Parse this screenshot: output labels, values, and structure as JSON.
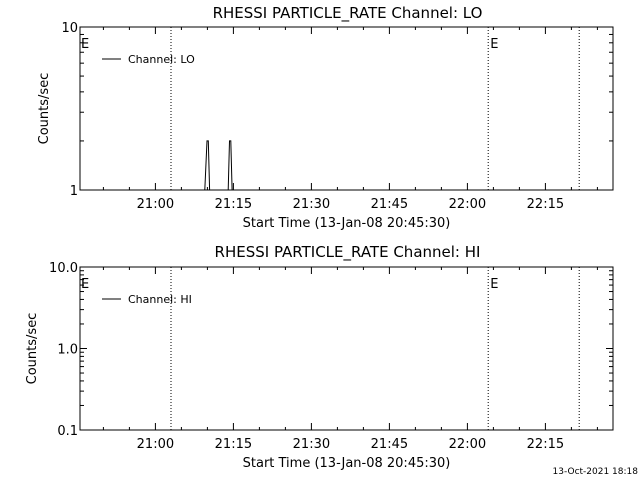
{
  "chart_data": [
    {
      "type": "line",
      "title": "RHESSI PARTICLE_RATE Channel: LO",
      "xlabel": "Start Time (13-Jan-08 20:45:30)",
      "ylabel": "Counts/sec",
      "y_scale": "log",
      "ylim": [
        1,
        10
      ],
      "y_ticks": [
        1,
        10
      ],
      "y_tick_labels": [
        "1",
        "10"
      ],
      "xlim": [
        "20:45:30",
        "22:28:00"
      ],
      "x_ticks": [
        "21:00",
        "21:15",
        "21:30",
        "21:45",
        "22:00",
        "22:15"
      ],
      "legend": {
        "placement": "top-left",
        "entries": [
          "Channel: LO"
        ]
      },
      "series": [
        {
          "name": "Channel: LO",
          "x": [
            "21:09:30",
            "21:09:55",
            "21:10:10",
            "21:10:25",
            "21:14:00",
            "21:14:15",
            "21:14:30",
            "21:14:45"
          ],
          "values": [
            1,
            2,
            2,
            1,
            1,
            2,
            2,
            1
          ]
        }
      ],
      "markers": [
        {
          "label": "E",
          "time": "20:45:30",
          "line": false
        },
        {
          "label": "",
          "time": "21:03:00",
          "line": true
        },
        {
          "label": "E",
          "time": "22:04:00",
          "line": true
        },
        {
          "label": "",
          "time": "22:21:30",
          "line": true
        }
      ]
    },
    {
      "type": "line",
      "title": "RHESSI PARTICLE_RATE Channel: HI",
      "xlabel": "Start Time (13-Jan-08 20:45:30)",
      "ylabel": "Counts/sec",
      "y_scale": "log",
      "ylim": [
        0.1,
        10
      ],
      "y_ticks": [
        0.1,
        1,
        10
      ],
      "y_tick_labels": [
        "0.1",
        "1.0",
        "10.0"
      ],
      "xlim": [
        "20:45:30",
        "22:28:00"
      ],
      "x_ticks": [
        "21:00",
        "21:15",
        "21:30",
        "21:45",
        "22:00",
        "22:15"
      ],
      "legend": {
        "placement": "top-left",
        "entries": [
          "Channel: HI"
        ]
      },
      "series": [
        {
          "name": "Channel: HI",
          "x": [],
          "values": []
        }
      ],
      "markers": [
        {
          "label": "E",
          "time": "20:45:30",
          "line": false
        },
        {
          "label": "",
          "time": "21:03:00",
          "line": true
        },
        {
          "label": "E",
          "time": "22:04:00",
          "line": true
        },
        {
          "label": "",
          "time": "22:21:30",
          "line": true
        }
      ]
    }
  ],
  "footer": {
    "timestamp": "13-Oct-2021 18:18"
  }
}
